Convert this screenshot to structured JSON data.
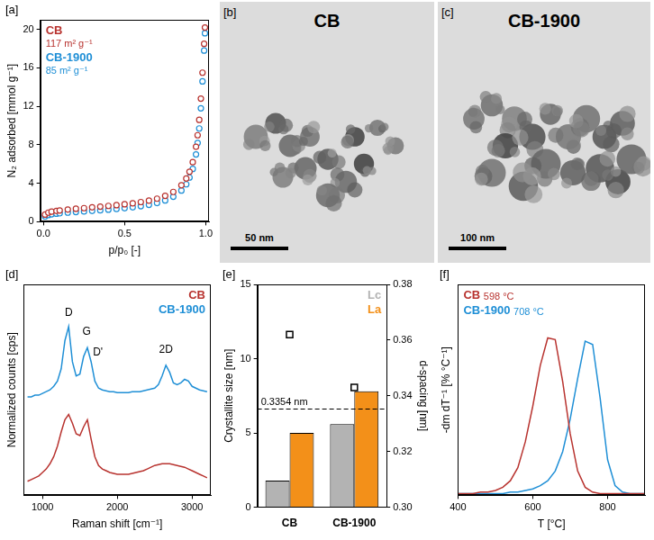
{
  "chart_data": [
    {
      "panel": "[a]",
      "type": "scatter",
      "x_label": "p/p₀ [-]",
      "y_label": "N₂ adsorbed [mmol g⁻¹]",
      "x": [
        0.01,
        0.03,
        0.05,
        0.08,
        0.1,
        0.15,
        0.2,
        0.25,
        0.3,
        0.35,
        0.4,
        0.45,
        0.5,
        0.55,
        0.6,
        0.65,
        0.7,
        0.75,
        0.8,
        0.85,
        0.88,
        0.9,
        0.92,
        0.94,
        0.95,
        0.96,
        0.97,
        0.98,
        0.99,
        0.995
      ],
      "series": [
        {
          "name": "CB",
          "note": "117 m² g⁻¹",
          "color": "#b8332f",
          "marker": "open_circle",
          "values": [
            0.75,
            0.95,
            1.05,
            1.13,
            1.18,
            1.27,
            1.35,
            1.42,
            1.5,
            1.57,
            1.65,
            1.73,
            1.82,
            1.92,
            2.05,
            2.2,
            2.4,
            2.7,
            3.1,
            3.8,
            4.5,
            5.2,
            6.2,
            7.8,
            9.0,
            10.6,
            12.8,
            15.5,
            18.5,
            20.2
          ]
        },
        {
          "name": "CB-1900",
          "note": "85 m² g⁻¹",
          "color": "#1f8fd6",
          "marker": "open_circle",
          "values": [
            0.55,
            0.7,
            0.78,
            0.84,
            0.88,
            0.95,
            1.01,
            1.07,
            1.13,
            1.19,
            1.26,
            1.33,
            1.41,
            1.5,
            1.62,
            1.76,
            1.95,
            2.22,
            2.6,
            3.25,
            3.9,
            4.6,
            5.5,
            7.0,
            8.2,
            9.7,
            11.8,
            14.6,
            17.8,
            19.6
          ]
        }
      ],
      "xlim": [
        -0.02,
        1.02
      ],
      "xticks": [
        {
          "value": 0,
          "label": "0.0"
        },
        0.5,
        {
          "value": 1,
          "label": "1.0"
        }
      ],
      "ylim": [
        0,
        21
      ],
      "yticks": [
        0,
        4,
        8,
        12,
        16,
        20
      ],
      "grid": false,
      "legend": "top-left"
    },
    {
      "panel": "[d]",
      "type": "line",
      "x_label": "Raman shift [cm⁻¹]",
      "y_label": "Normalized counts [cps]",
      "x": [
        800,
        850,
        900,
        950,
        1000,
        1050,
        1100,
        1150,
        1200,
        1250,
        1300,
        1350,
        1400,
        1450,
        1500,
        1550,
        1600,
        1650,
        1700,
        1750,
        1800,
        1850,
        1900,
        1950,
        2000,
        2050,
        2100,
        2150,
        2200,
        2250,
        2300,
        2350,
        2400,
        2450,
        2500,
        2550,
        2600,
        2650,
        2700,
        2750,
        2800,
        2850,
        2900,
        2950,
        3000,
        3050,
        3100,
        3150,
        3200
      ],
      "series": [
        {
          "name": "CB",
          "color": "#b8332f",
          "line_style": "solid",
          "values": [
            0.8,
            0.9,
            1.0,
            1.1,
            1.3,
            1.5,
            1.8,
            2.2,
            2.8,
            3.6,
            4.3,
            4.6,
            4.1,
            3.5,
            3.4,
            3.9,
            4.3,
            3.2,
            2.2,
            1.7,
            1.5,
            1.4,
            1.3,
            1.25,
            1.2,
            1.2,
            1.2,
            1.2,
            1.25,
            1.3,
            1.35,
            1.4,
            1.5,
            1.6,
            1.7,
            1.75,
            1.8,
            1.8,
            1.8,
            1.75,
            1.7,
            1.65,
            1.6,
            1.5,
            1.4,
            1.3,
            1.2,
            1.1,
            1.0
          ]
        },
        {
          "name": "CB-1900",
          "color": "#1f8fd6",
          "line_style": "solid",
          "values": [
            5.6,
            5.6,
            5.7,
            5.7,
            5.8,
            5.9,
            6.0,
            6.2,
            6.5,
            7.2,
            8.8,
            9.6,
            7.6,
            6.8,
            6.9,
            7.9,
            8.4,
            7.6,
            6.5,
            6.1,
            6.0,
            5.95,
            5.9,
            5.9,
            5.85,
            5.85,
            5.85,
            5.85,
            5.9,
            5.9,
            5.9,
            5.95,
            6.0,
            6.05,
            6.1,
            6.3,
            6.8,
            7.4,
            7.0,
            6.4,
            6.3,
            6.4,
            6.6,
            6.5,
            6.2,
            6.1,
            6.0,
            5.95,
            5.9
          ]
        }
      ],
      "annotations": [
        {
          "text": "D",
          "x": 1350,
          "y": 10.4
        },
        {
          "text": "G",
          "x": 1590,
          "y": 9.3
        },
        {
          "text": "D'",
          "x": 1740,
          "y": 8.1
        },
        {
          "text": "2D",
          "x": 2650,
          "y": 8.3
        }
      ],
      "xlim": [
        750,
        3250
      ],
      "xticks": [
        1000,
        2000,
        3000
      ],
      "ylim": [
        0,
        12
      ],
      "tick_labels": "x",
      "grid": false,
      "legend": "top-right"
    },
    {
      "panel": "[e]",
      "type": "bar",
      "y_label": "Crystallite size [nm]",
      "y2_label": "d-spacing [nm]",
      "categories": [
        "CB",
        "CB-1900"
      ],
      "series": [
        {
          "name": "Lc",
          "color": "#b3b3b3",
          "values": [
            1.8,
            5.6
          ]
        },
        {
          "name": "La",
          "color": "#f39019",
          "values": [
            5.0,
            7.8
          ]
        },
        {
          "type": "scatter",
          "marker": "square",
          "color": "#000000",
          "axis": "y2",
          "values": [
            0.362,
            0.343
          ]
        }
      ],
      "reference_lines": [
        {
          "axis": "y2",
          "value": 0.3354,
          "label": "0.3354 nm",
          "line_style": "dashed"
        }
      ],
      "ylim": [
        0,
        15
      ],
      "yticks": [
        0,
        5,
        10,
        15
      ],
      "y2lim": [
        0.3,
        0.38
      ],
      "y2ticks": [
        {
          "value": 0.3,
          "label": "0.30"
        },
        0.32,
        0.34,
        0.36,
        0.38
      ],
      "grid": false,
      "legend": "top-right"
    },
    {
      "panel": "[f]",
      "type": "line",
      "x_label": "T [°C]",
      "y_label": "-dm dT⁻¹ [% °C⁻¹]",
      "x": [
        400,
        420,
        440,
        460,
        480,
        500,
        520,
        540,
        560,
        580,
        600,
        620,
        640,
        660,
        680,
        700,
        720,
        740,
        760,
        780,
        800,
        820,
        840,
        860,
        880,
        900
      ],
      "series": [
        {
          "name": "CB",
          "note": "598 °C",
          "color": "#b8332f",
          "line_style": "solid",
          "values": [
            0.01,
            0.01,
            0.01,
            0.02,
            0.02,
            0.03,
            0.05,
            0.09,
            0.17,
            0.33,
            0.55,
            0.8,
            0.97,
            0.96,
            0.7,
            0.38,
            0.15,
            0.05,
            0.02,
            0.01,
            0.01,
            0.01,
            0.01,
            0.01,
            0.01,
            0.01
          ]
        },
        {
          "name": "CB-1900",
          "note": "708 °C",
          "color": "#1f8fd6",
          "line_style": "solid",
          "values": [
            0.01,
            0.01,
            0.01,
            0.01,
            0.01,
            0.01,
            0.01,
            0.02,
            0.02,
            0.03,
            0.04,
            0.06,
            0.09,
            0.15,
            0.27,
            0.47,
            0.72,
            0.95,
            0.93,
            0.6,
            0.22,
            0.06,
            0.02,
            0.01,
            0.01,
            0.01
          ]
        }
      ],
      "xlim": [
        400,
        900
      ],
      "xticks": [
        400,
        600,
        800
      ],
      "ylim": [
        0,
        1.3
      ],
      "tick_labels": "x",
      "grid": false,
      "legend": "top-left"
    }
  ],
  "images": [
    {
      "panel": "[b]",
      "title": "CB",
      "scale_bar": "50 nm"
    },
    {
      "panel": "[c]",
      "title": "CB-1900",
      "scale_bar": "100 nm"
    }
  ]
}
